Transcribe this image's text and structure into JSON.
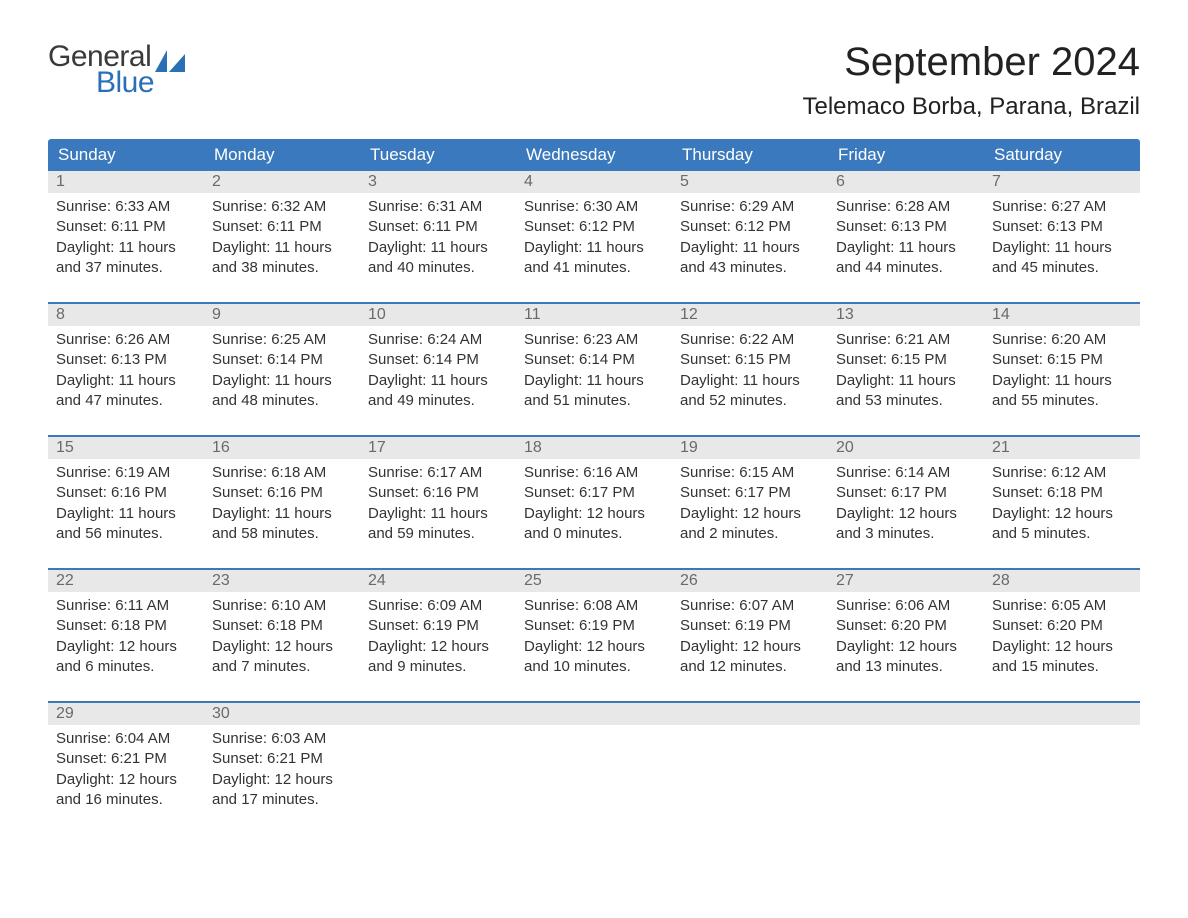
{
  "logo": {
    "word1": "General",
    "word2": "Blue",
    "text_color": "#3a3a3a",
    "accent_color": "#2b6fb5"
  },
  "title": "September 2024",
  "location": "Telemaco Borba, Parana, Brazil",
  "colors": {
    "header_bg": "#3a79bd",
    "header_text": "#ffffff",
    "daynum_bg": "#e8e8e8",
    "daynum_text": "#6a6a6a",
    "body_text": "#333333",
    "week_divider": "#3a79bd",
    "page_bg": "#ffffff"
  },
  "typography": {
    "title_fontsize": 40,
    "location_fontsize": 24,
    "dow_fontsize": 17,
    "daynum_fontsize": 16,
    "body_fontsize": 15,
    "font_family": "Arial"
  },
  "layout": {
    "columns": 7,
    "rows": 5,
    "leading_blanks": 0,
    "trailing_blanks": 5
  },
  "days_of_week": [
    "Sunday",
    "Monday",
    "Tuesday",
    "Wednesday",
    "Thursday",
    "Friday",
    "Saturday"
  ],
  "days": [
    {
      "n": 1,
      "sunrise": "6:33 AM",
      "sunset": "6:11 PM",
      "daylight": "11 hours and 37 minutes."
    },
    {
      "n": 2,
      "sunrise": "6:32 AM",
      "sunset": "6:11 PM",
      "daylight": "11 hours and 38 minutes."
    },
    {
      "n": 3,
      "sunrise": "6:31 AM",
      "sunset": "6:11 PM",
      "daylight": "11 hours and 40 minutes."
    },
    {
      "n": 4,
      "sunrise": "6:30 AM",
      "sunset": "6:12 PM",
      "daylight": "11 hours and 41 minutes."
    },
    {
      "n": 5,
      "sunrise": "6:29 AM",
      "sunset": "6:12 PM",
      "daylight": "11 hours and 43 minutes."
    },
    {
      "n": 6,
      "sunrise": "6:28 AM",
      "sunset": "6:13 PM",
      "daylight": "11 hours and 44 minutes."
    },
    {
      "n": 7,
      "sunrise": "6:27 AM",
      "sunset": "6:13 PM",
      "daylight": "11 hours and 45 minutes."
    },
    {
      "n": 8,
      "sunrise": "6:26 AM",
      "sunset": "6:13 PM",
      "daylight": "11 hours and 47 minutes."
    },
    {
      "n": 9,
      "sunrise": "6:25 AM",
      "sunset": "6:14 PM",
      "daylight": "11 hours and 48 minutes."
    },
    {
      "n": 10,
      "sunrise": "6:24 AM",
      "sunset": "6:14 PM",
      "daylight": "11 hours and 49 minutes."
    },
    {
      "n": 11,
      "sunrise": "6:23 AM",
      "sunset": "6:14 PM",
      "daylight": "11 hours and 51 minutes."
    },
    {
      "n": 12,
      "sunrise": "6:22 AM",
      "sunset": "6:15 PM",
      "daylight": "11 hours and 52 minutes."
    },
    {
      "n": 13,
      "sunrise": "6:21 AM",
      "sunset": "6:15 PM",
      "daylight": "11 hours and 53 minutes."
    },
    {
      "n": 14,
      "sunrise": "6:20 AM",
      "sunset": "6:15 PM",
      "daylight": "11 hours and 55 minutes."
    },
    {
      "n": 15,
      "sunrise": "6:19 AM",
      "sunset": "6:16 PM",
      "daylight": "11 hours and 56 minutes."
    },
    {
      "n": 16,
      "sunrise": "6:18 AM",
      "sunset": "6:16 PM",
      "daylight": "11 hours and 58 minutes."
    },
    {
      "n": 17,
      "sunrise": "6:17 AM",
      "sunset": "6:16 PM",
      "daylight": "11 hours and 59 minutes."
    },
    {
      "n": 18,
      "sunrise": "6:16 AM",
      "sunset": "6:17 PM",
      "daylight": "12 hours and 0 minutes."
    },
    {
      "n": 19,
      "sunrise": "6:15 AM",
      "sunset": "6:17 PM",
      "daylight": "12 hours and 2 minutes."
    },
    {
      "n": 20,
      "sunrise": "6:14 AM",
      "sunset": "6:17 PM",
      "daylight": "12 hours and 3 minutes."
    },
    {
      "n": 21,
      "sunrise": "6:12 AM",
      "sunset": "6:18 PM",
      "daylight": "12 hours and 5 minutes."
    },
    {
      "n": 22,
      "sunrise": "6:11 AM",
      "sunset": "6:18 PM",
      "daylight": "12 hours and 6 minutes."
    },
    {
      "n": 23,
      "sunrise": "6:10 AM",
      "sunset": "6:18 PM",
      "daylight": "12 hours and 7 minutes."
    },
    {
      "n": 24,
      "sunrise": "6:09 AM",
      "sunset": "6:19 PM",
      "daylight": "12 hours and 9 minutes."
    },
    {
      "n": 25,
      "sunrise": "6:08 AM",
      "sunset": "6:19 PM",
      "daylight": "12 hours and 10 minutes."
    },
    {
      "n": 26,
      "sunrise": "6:07 AM",
      "sunset": "6:19 PM",
      "daylight": "12 hours and 12 minutes."
    },
    {
      "n": 27,
      "sunrise": "6:06 AM",
      "sunset": "6:20 PM",
      "daylight": "12 hours and 13 minutes."
    },
    {
      "n": 28,
      "sunrise": "6:05 AM",
      "sunset": "6:20 PM",
      "daylight": "12 hours and 15 minutes."
    },
    {
      "n": 29,
      "sunrise": "6:04 AM",
      "sunset": "6:21 PM",
      "daylight": "12 hours and 16 minutes."
    },
    {
      "n": 30,
      "sunrise": "6:03 AM",
      "sunset": "6:21 PM",
      "daylight": "12 hours and 17 minutes."
    }
  ],
  "labels": {
    "sunrise": "Sunrise: ",
    "sunset": "Sunset: ",
    "daylight": "Daylight: "
  }
}
